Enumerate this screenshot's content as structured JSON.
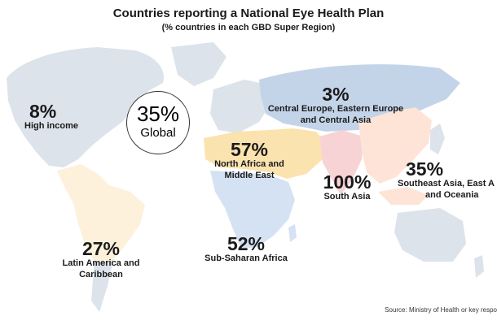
{
  "header": {
    "title": "Countries reporting a National Eye Health Plan",
    "subtitle": "(% countries in each GBD Super Region)"
  },
  "global": {
    "value": "35%",
    "label": "Global"
  },
  "regions": [
    {
      "id": "high-income",
      "value": "8%",
      "label_lines": [
        "High income"
      ],
      "color": "#dde3ea"
    },
    {
      "id": "central-europe-asia",
      "value": "3%",
      "label_lines": [
        "Central Europe, Eastern Europe",
        "and Central Asia"
      ],
      "color": "#c4d4e8"
    },
    {
      "id": "north-africa-middle-east",
      "value": "57%",
      "label_lines": [
        "North Africa and",
        "Middle East"
      ],
      "color": "#fbe3b0"
    },
    {
      "id": "south-asia",
      "value": "100%",
      "label_lines": [
        "South Asia"
      ],
      "color": "#f8d3d6"
    },
    {
      "id": "southeast-asia",
      "value": "35%",
      "label_lines": [
        "Southeast Asia, East A",
        "and Oceania"
      ],
      "color": "#fde4d6"
    },
    {
      "id": "latin-america",
      "value": "27%",
      "label_lines": [
        "Latin America and",
        "Caribbean"
      ],
      "color": "#fdf1dc"
    },
    {
      "id": "sub-saharan-africa",
      "value": "52%",
      "label_lines": [
        "Sub-Saharan Africa"
      ],
      "color": "#d5e2f3"
    }
  ],
  "source": "Source: Ministry of Health or key respo"
}
